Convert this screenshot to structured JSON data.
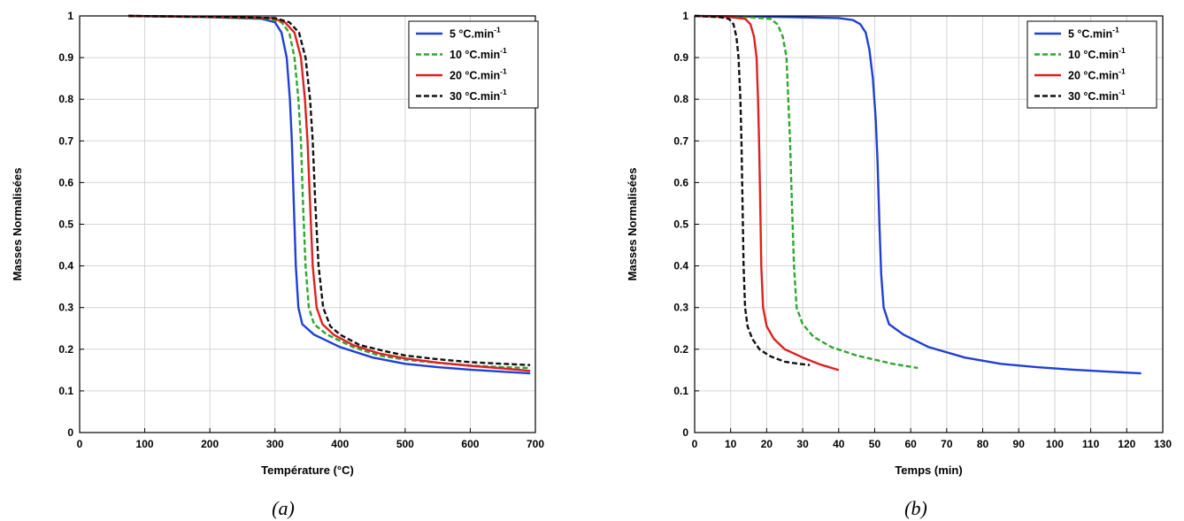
{
  "chart_data": [
    {
      "type": "line",
      "caption": "(a)",
      "xlabel": "Température  (°C)",
      "ylabel": "Masses  Normalisées",
      "xlim": [
        0,
        700
      ],
      "ylim": [
        0,
        1
      ],
      "xticks": [
        0,
        100,
        200,
        300,
        400,
        500,
        600,
        700
      ],
      "yticks": [
        0,
        0.1,
        0.2,
        0.3,
        0.4,
        0.5,
        0.6,
        0.7,
        0.8,
        0.9,
        1
      ],
      "grid": true,
      "legend_position": "top-right",
      "legend_unit": "°C.min",
      "legend_unit_exp": "-1",
      "series": [
        {
          "name": "5",
          "color": "#1f3fd6",
          "dash": "solid",
          "points": [
            [
              75,
              1
            ],
            [
              200,
              0.997
            ],
            [
              280,
              0.993
            ],
            [
              300,
              0.985
            ],
            [
              310,
              0.96
            ],
            [
              318,
              0.9
            ],
            [
              323,
              0.8
            ],
            [
              326,
              0.7
            ],
            [
              329,
              0.55
            ],
            [
              332,
              0.4
            ],
            [
              336,
              0.3
            ],
            [
              342,
              0.26
            ],
            [
              360,
              0.235
            ],
            [
              400,
              0.205
            ],
            [
              450,
              0.18
            ],
            [
              500,
              0.165
            ],
            [
              550,
              0.157
            ],
            [
              600,
              0.151
            ],
            [
              650,
              0.146
            ],
            [
              692,
              0.142
            ]
          ]
        },
        {
          "name": "10",
          "color": "#2fa62f",
          "dash": "dash",
          "points": [
            [
              75,
              1
            ],
            [
              200,
              0.997
            ],
            [
              290,
              0.993
            ],
            [
              310,
              0.985
            ],
            [
              322,
              0.96
            ],
            [
              330,
              0.9
            ],
            [
              336,
              0.8
            ],
            [
              340,
              0.7
            ],
            [
              343,
              0.55
            ],
            [
              347,
              0.4
            ],
            [
              352,
              0.3
            ],
            [
              360,
              0.26
            ],
            [
              380,
              0.235
            ],
            [
              420,
              0.205
            ],
            [
              460,
              0.185
            ],
            [
              500,
              0.175
            ],
            [
              550,
              0.167
            ],
            [
              600,
              0.161
            ],
            [
              650,
              0.157
            ],
            [
              692,
              0.155
            ]
          ]
        },
        {
          "name": "20",
          "color": "#e02020",
          "dash": "solid",
          "points": [
            [
              75,
              1
            ],
            [
              200,
              0.998
            ],
            [
              295,
              0.995
            ],
            [
              315,
              0.985
            ],
            [
              330,
              0.96
            ],
            [
              340,
              0.9
            ],
            [
              346,
              0.8
            ],
            [
              350,
              0.7
            ],
            [
              354,
              0.55
            ],
            [
              358,
              0.4
            ],
            [
              364,
              0.3
            ],
            [
              373,
              0.26
            ],
            [
              390,
              0.235
            ],
            [
              420,
              0.21
            ],
            [
              460,
              0.19
            ],
            [
              500,
              0.178
            ],
            [
              550,
              0.168
            ],
            [
              600,
              0.16
            ],
            [
              650,
              0.154
            ],
            [
              692,
              0.148
            ]
          ]
        },
        {
          "name": "30",
          "color": "#111111",
          "dash": "dash",
          "points": [
            [
              75,
              1
            ],
            [
              200,
              0.998
            ],
            [
              300,
              0.995
            ],
            [
              322,
              0.985
            ],
            [
              337,
              0.96
            ],
            [
              347,
              0.9
            ],
            [
              354,
              0.8
            ],
            [
              358,
              0.7
            ],
            [
              362,
              0.55
            ],
            [
              367,
              0.4
            ],
            [
              374,
              0.3
            ],
            [
              385,
              0.255
            ],
            [
              400,
              0.235
            ],
            [
              430,
              0.21
            ],
            [
              470,
              0.195
            ],
            [
              500,
              0.185
            ],
            [
              550,
              0.176
            ],
            [
              600,
              0.169
            ],
            [
              650,
              0.165
            ],
            [
              692,
              0.162
            ]
          ]
        }
      ]
    },
    {
      "type": "line",
      "caption": "(b)",
      "xlabel": "Temps (min)",
      "ylabel": "Masses  Normalisées",
      "xlim": [
        0,
        130
      ],
      "ylim": [
        0,
        1
      ],
      "xticks": [
        0,
        10,
        20,
        30,
        40,
        50,
        60,
        70,
        80,
        90,
        100,
        110,
        120,
        130
      ],
      "yticks": [
        0,
        0.1,
        0.2,
        0.3,
        0.4,
        0.5,
        0.6,
        0.7,
        0.8,
        0.9,
        1
      ],
      "grid": true,
      "legend_position": "top-right",
      "legend_unit": "°C.min",
      "legend_unit_exp": "-1",
      "series": [
        {
          "name": "5",
          "color": "#1f3fd6",
          "dash": "solid",
          "points": [
            [
              0,
              1
            ],
            [
              20,
              0.998
            ],
            [
              40,
              0.995
            ],
            [
              44,
              0.99
            ],
            [
              46,
              0.98
            ],
            [
              47.5,
              0.96
            ],
            [
              48.5,
              0.92
            ],
            [
              49.5,
              0.85
            ],
            [
              50.3,
              0.75
            ],
            [
              50.8,
              0.65
            ],
            [
              51.3,
              0.5
            ],
            [
              51.8,
              0.38
            ],
            [
              52.5,
              0.3
            ],
            [
              54,
              0.26
            ],
            [
              58,
              0.235
            ],
            [
              65,
              0.205
            ],
            [
              75,
              0.18
            ],
            [
              85,
              0.165
            ],
            [
              95,
              0.157
            ],
            [
              105,
              0.151
            ],
            [
              115,
              0.146
            ],
            [
              124,
              0.142
            ]
          ]
        },
        {
          "name": "10",
          "color": "#2fa62f",
          "dash": "dash",
          "points": [
            [
              0,
              1
            ],
            [
              15,
              0.997
            ],
            [
              21,
              0.993
            ],
            [
              23,
              0.98
            ],
            [
              24.5,
              0.95
            ],
            [
              25.5,
              0.9
            ],
            [
              26,
              0.8
            ],
            [
              26.5,
              0.7
            ],
            [
              27,
              0.55
            ],
            [
              27.6,
              0.4
            ],
            [
              28.3,
              0.3
            ],
            [
              30,
              0.26
            ],
            [
              33,
              0.23
            ],
            [
              38,
              0.205
            ],
            [
              45,
              0.185
            ],
            [
              50,
              0.175
            ],
            [
              55,
              0.165
            ],
            [
              62,
              0.155
            ]
          ]
        },
        {
          "name": "20",
          "color": "#e02020",
          "dash": "solid",
          "points": [
            [
              0,
              1
            ],
            [
              10,
              0.997
            ],
            [
              14,
              0.993
            ],
            [
              15.5,
              0.98
            ],
            [
              16.5,
              0.95
            ],
            [
              17.2,
              0.9
            ],
            [
              17.6,
              0.8
            ],
            [
              17.9,
              0.7
            ],
            [
              18.2,
              0.55
            ],
            [
              18.5,
              0.4
            ],
            [
              19,
              0.3
            ],
            [
              20,
              0.255
            ],
            [
              22,
              0.225
            ],
            [
              25,
              0.2
            ],
            [
              30,
              0.18
            ],
            [
              35,
              0.163
            ],
            [
              40,
              0.15
            ]
          ]
        },
        {
          "name": "30",
          "color": "#111111",
          "dash": "dash",
          "points": [
            [
              0,
              1
            ],
            [
              7,
              0.997
            ],
            [
              9.5,
              0.993
            ],
            [
              10.8,
              0.98
            ],
            [
              11.6,
              0.95
            ],
            [
              12.2,
              0.9
            ],
            [
              12.7,
              0.8
            ],
            [
              13,
              0.7
            ],
            [
              13.3,
              0.55
            ],
            [
              13.6,
              0.4
            ],
            [
              14,
              0.3
            ],
            [
              14.7,
              0.255
            ],
            [
              16,
              0.225
            ],
            [
              18,
              0.2
            ],
            [
              21,
              0.183
            ],
            [
              25,
              0.17
            ],
            [
              29,
              0.165
            ],
            [
              32,
              0.162
            ]
          ]
        }
      ]
    }
  ]
}
